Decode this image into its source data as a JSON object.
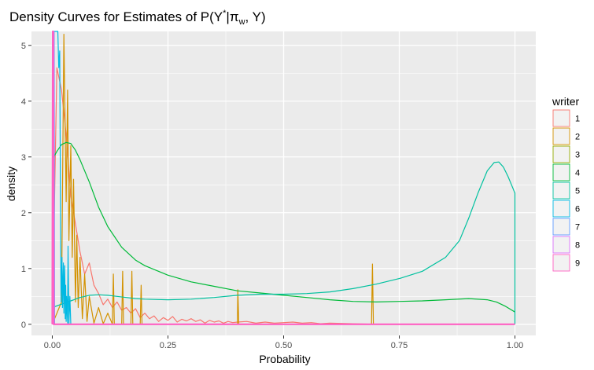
{
  "chart_data": {
    "type": "line",
    "title": "Density Curves for Estimates of P(Y*|πw, Y)",
    "title_parts": {
      "prefix": "Density Curves for Estimates of P(Y",
      "sup": "*",
      "middle": "|π",
      "sub": "w",
      "suffix": ", Y)"
    },
    "xlabel": "Probability",
    "ylabel": "density",
    "xlim": [
      -0.045,
      1.045
    ],
    "ylim": [
      -0.2,
      5.25
    ],
    "x_ticks": [
      0.0,
      0.25,
      0.5,
      0.75,
      1.0
    ],
    "x_tick_labels": [
      "0.00",
      "0.25",
      "0.50",
      "0.75",
      "1.00"
    ],
    "y_ticks": [
      0,
      1,
      2,
      3,
      4,
      5
    ],
    "y_tick_labels": [
      "0",
      "1",
      "2",
      "3",
      "4",
      "5"
    ],
    "grid": true,
    "legend": {
      "title": "writer",
      "position": "right"
    },
    "series": [
      {
        "name": "1",
        "color": "#F8766D",
        "x": [
          0.0,
          0.01,
          0.02,
          0.03,
          0.04,
          0.05,
          0.06,
          0.07,
          0.08,
          0.09,
          0.1,
          0.11,
          0.12,
          0.13,
          0.14,
          0.15,
          0.16,
          0.17,
          0.18,
          0.19,
          0.2,
          0.21,
          0.22,
          0.23,
          0.24,
          0.25,
          0.26,
          0.27,
          0.28,
          0.29,
          0.3,
          0.31,
          0.32,
          0.33,
          0.34,
          0.35,
          0.36,
          0.37,
          0.38,
          0.39,
          0.4,
          0.42,
          0.44,
          0.46,
          0.48,
          0.5,
          0.52,
          0.54,
          0.56,
          0.58,
          0.6,
          0.65,
          0.7,
          0.75,
          0.8,
          0.9,
          1.0
        ],
        "y": [
          0.0,
          4.6,
          4.2,
          3.4,
          2.3,
          1.8,
          1.3,
          0.9,
          1.1,
          0.7,
          0.55,
          0.35,
          0.45,
          0.3,
          0.4,
          0.25,
          0.3,
          0.2,
          0.28,
          0.12,
          0.2,
          0.1,
          0.15,
          0.05,
          0.12,
          0.07,
          0.14,
          0.04,
          0.09,
          0.06,
          0.1,
          0.05,
          0.08,
          0.02,
          0.07,
          0.04,
          0.06,
          0.02,
          0.05,
          0.03,
          0.04,
          0.05,
          0.02,
          0.04,
          0.02,
          0.03,
          0.04,
          0.02,
          0.03,
          0.01,
          0.02,
          0.01,
          0.0,
          0.0,
          0.0,
          0.0,
          0.0
        ]
      },
      {
        "name": "2",
        "color": "#D39200",
        "x": [
          0.0,
          0.02,
          0.025,
          0.03,
          0.033,
          0.036,
          0.04,
          0.043,
          0.046,
          0.05,
          0.053,
          0.056,
          0.06,
          0.065,
          0.07,
          0.075,
          0.08,
          0.09,
          0.1,
          0.11,
          0.12,
          0.13,
          0.132,
          0.134,
          0.15,
          0.152,
          0.154,
          0.17,
          0.172,
          0.174,
          0.19,
          0.192,
          0.194,
          0.25,
          0.4,
          0.401,
          0.403,
          0.405,
          0.6,
          0.69,
          0.692,
          0.694,
          0.696,
          0.8,
          1.0
        ],
        "y": [
          0.0,
          0.4,
          5.2,
          2.2,
          4.2,
          1.5,
          3.2,
          1.2,
          2.6,
          0.4,
          1.6,
          0.3,
          1.2,
          0.1,
          0.9,
          0.05,
          0.5,
          0.02,
          0.3,
          0.01,
          0.2,
          0.0,
          0.9,
          0.0,
          0.0,
          0.95,
          0.0,
          0.0,
          0.95,
          0.0,
          0.0,
          0.7,
          0.0,
          0.0,
          0.0,
          0.62,
          0.0,
          0.0,
          0.0,
          0.0,
          1.08,
          0.0,
          0.0,
          0.0,
          0.0
        ]
      },
      {
        "name": "4",
        "color": "#00BA38",
        "x": [
          0.0,
          0.01,
          0.02,
          0.03,
          0.04,
          0.05,
          0.06,
          0.08,
          0.1,
          0.12,
          0.15,
          0.18,
          0.2,
          0.25,
          0.3,
          0.35,
          0.4,
          0.45,
          0.5,
          0.55,
          0.6,
          0.65,
          0.7,
          0.75,
          0.8,
          0.85,
          0.9,
          0.94,
          0.96,
          0.98,
          1.0
        ],
        "y": [
          2.95,
          3.1,
          3.22,
          3.26,
          3.24,
          3.12,
          2.95,
          2.55,
          2.1,
          1.75,
          1.38,
          1.15,
          1.05,
          0.88,
          0.76,
          0.68,
          0.6,
          0.56,
          0.52,
          0.48,
          0.44,
          0.41,
          0.4,
          0.41,
          0.42,
          0.44,
          0.46,
          0.44,
          0.4,
          0.32,
          0.22
        ]
      },
      {
        "name": "5",
        "color": "#00C19F",
        "x": [
          0.0,
          0.02,
          0.04,
          0.06,
          0.08,
          0.1,
          0.12,
          0.14,
          0.16,
          0.18,
          0.2,
          0.25,
          0.3,
          0.35,
          0.4,
          0.45,
          0.5,
          0.55,
          0.6,
          0.65,
          0.7,
          0.75,
          0.8,
          0.85,
          0.88,
          0.9,
          0.92,
          0.94,
          0.955,
          0.965,
          0.975,
          0.985,
          0.995,
          1.0,
          1.0
        ],
        "y": [
          0.3,
          0.36,
          0.42,
          0.48,
          0.52,
          0.53,
          0.52,
          0.5,
          0.48,
          0.46,
          0.45,
          0.44,
          0.45,
          0.48,
          0.52,
          0.54,
          0.54,
          0.55,
          0.58,
          0.64,
          0.72,
          0.82,
          0.95,
          1.2,
          1.5,
          1.9,
          2.35,
          2.75,
          2.9,
          2.91,
          2.82,
          2.65,
          2.45,
          2.35,
          0.0
        ]
      },
      {
        "name": "6",
        "color": "#00B9E3",
        "x": [
          0.0,
          0.012,
          0.014,
          0.016,
          0.018,
          0.019,
          0.021,
          0.022,
          0.024,
          0.025,
          0.027,
          0.028,
          0.029,
          0.03,
          0.031,
          0.033,
          0.034,
          0.036,
          0.038,
          0.04,
          0.05,
          0.1,
          1.0
        ],
        "y": [
          5.25,
          5.25,
          4.6,
          4.9,
          1.8,
          0.4,
          1.2,
          0.3,
          1.1,
          0.2,
          1.05,
          0.1,
          0.7,
          0.05,
          0.5,
          0.02,
          1.4,
          0.0,
          0.5,
          0.0,
          0.0,
          0.0,
          0.0
        ]
      },
      {
        "name": "7",
        "color": "#619CFF",
        "x": [
          0.0,
          0.003,
          0.004,
          0.005,
          0.006,
          1.0
        ],
        "y": [
          0.0,
          5.25,
          5.25,
          0.0,
          0.0,
          0.0
        ]
      },
      {
        "name": "8",
        "color": "#DB72FB",
        "x": [
          0.0,
          0.002,
          0.003,
          0.004,
          1.0
        ],
        "y": [
          0.0,
          5.25,
          5.25,
          0.0,
          0.0
        ]
      },
      {
        "name": "9",
        "color": "#FF61C3",
        "x": [
          0.0,
          0.001,
          0.002,
          0.003,
          0.005,
          1.0
        ],
        "y": [
          0.0,
          5.25,
          5.25,
          0.0,
          0.0,
          0.0
        ]
      }
    ],
    "legend_entries": [
      {
        "name": "1",
        "color": "#F8766D"
      },
      {
        "name": "2",
        "color": "#D39200"
      },
      {
        "name": "3",
        "color": "#93AA00"
      },
      {
        "name": "4",
        "color": "#00BA38"
      },
      {
        "name": "5",
        "color": "#00C19F"
      },
      {
        "name": "6",
        "color": "#00B9E3"
      },
      {
        "name": "7",
        "color": "#619CFF"
      },
      {
        "name": "8",
        "color": "#DB72FB"
      },
      {
        "name": "9",
        "color": "#FF61C3"
      }
    ],
    "colors": {
      "panel": "#EBEBEB",
      "grid_major": "#FFFFFF",
      "key_bg": "#F2F2F2"
    }
  }
}
